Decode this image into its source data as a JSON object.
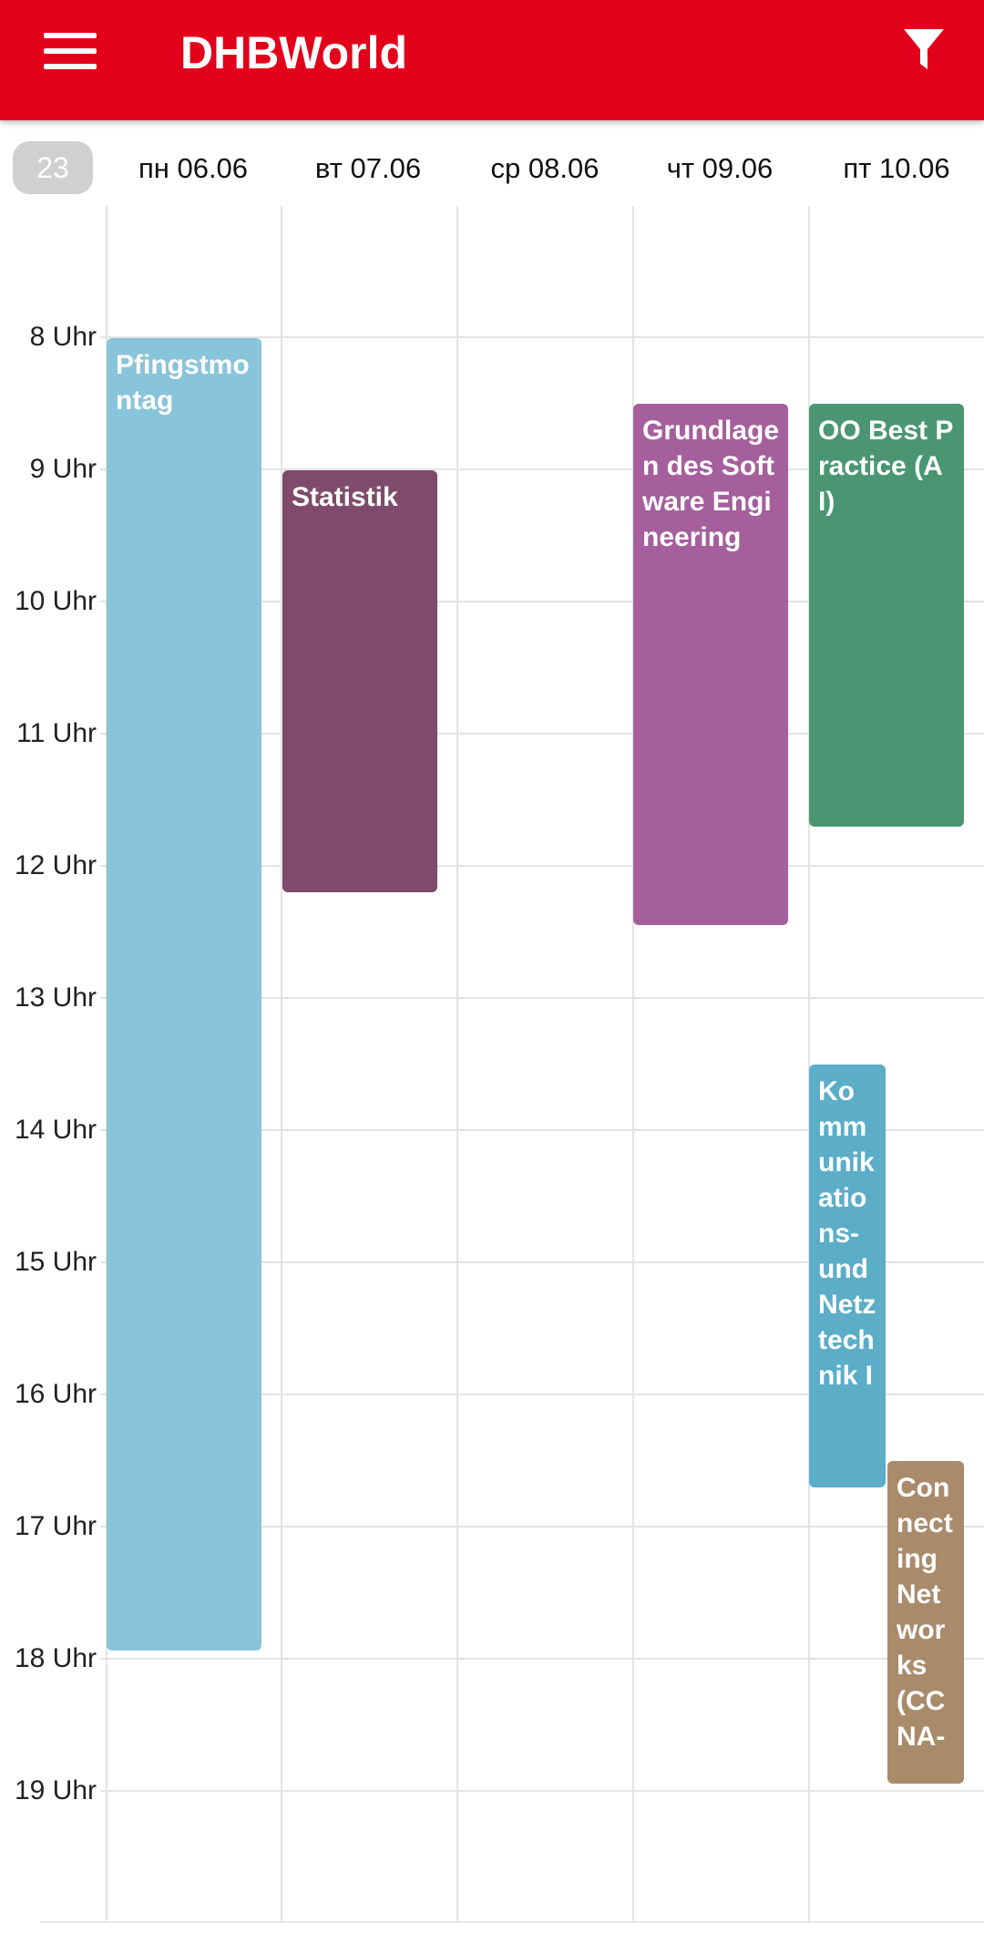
{
  "app": {
    "title": "DHBWorld",
    "menu_icon": "menu-icon",
    "filter_icon": "filter-icon"
  },
  "week": {
    "number": "23"
  },
  "days": [
    {
      "label": "пн 06.06"
    },
    {
      "label": "вт 07.06"
    },
    {
      "label": "ср 08.06"
    },
    {
      "label": "чт 09.06"
    },
    {
      "label": "пт 10.06"
    }
  ],
  "hours": [
    "8 Uhr",
    "9 Uhr",
    "10 Uhr",
    "11 Uhr",
    "12 Uhr",
    "13 Uhr",
    "14 Uhr",
    "15 Uhr",
    "16 Uhr",
    "17 Uhr",
    "18 Uhr",
    "19 Uhr"
  ],
  "events": [
    {
      "title": "Pfingstmontag",
      "color": "#88c4da"
    },
    {
      "title": "Statistik",
      "color": "#7f4a6b"
    },
    {
      "title": "Grundlagen des Software Engineering",
      "color": "#a55f9c"
    },
    {
      "title": "OO Best Practice (AI)",
      "color": "#4a9673"
    },
    {
      "title": "Kommunikations- und Netztechnik I",
      "color": "#5badc8"
    },
    {
      "title": "Connecting Networks (CCNA-",
      "color": "#a98b6c"
    }
  ],
  "colors": {
    "appbar": "#e2001a",
    "badge": "#d0d0d0",
    "gridline": "#e3e3e3"
  }
}
